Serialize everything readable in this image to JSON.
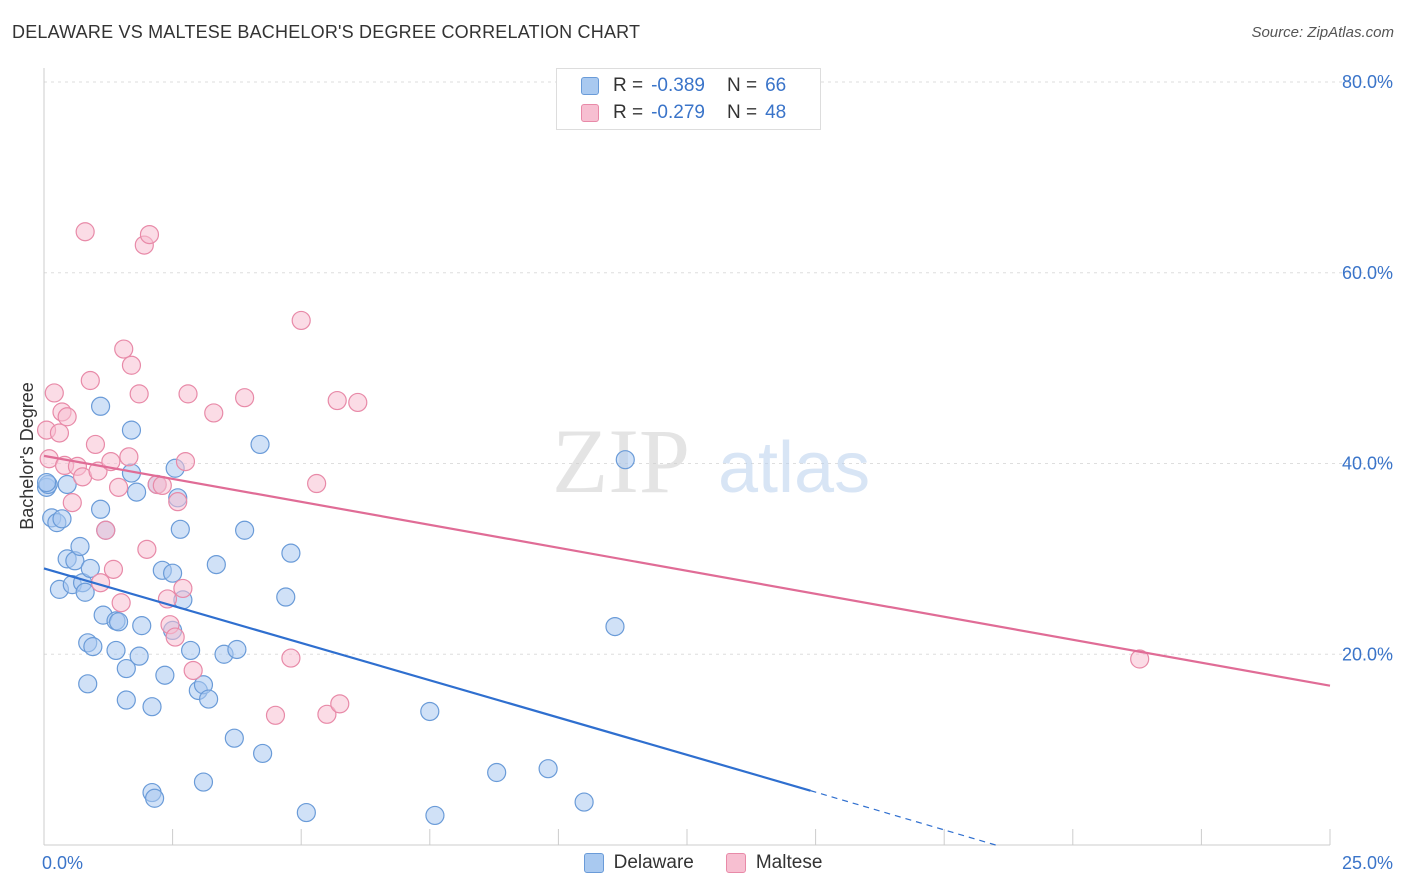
{
  "title": "DELAWARE VS MALTESE BACHELOR'S DEGREE CORRELATION CHART",
  "source": "Source: ZipAtlas.com",
  "watermark": {
    "zip": "ZIP",
    "atlas": "atlas"
  },
  "legend": {
    "r_label": "R =",
    "n_label": "N =",
    "rows": [
      {
        "name": "Delaware",
        "r": "-0.389",
        "n": "66"
      },
      {
        "name": "Maltese",
        "r": "-0.279",
        "n": "48"
      }
    ]
  },
  "colors": {
    "delaware_fill": "#a9c9f0",
    "delaware_stroke": "#6a9bd8",
    "delaware_line": "#2f6fcf",
    "maltese_fill": "#f7bfd1",
    "maltese_stroke": "#e88aa8",
    "maltese_line": "#e06c96",
    "axis_label": "#3a74c9"
  },
  "chart_data": {
    "type": "scatter",
    "title": "DELAWARE VS MALTESE BACHELOR'S DEGREE CORRELATION CHART",
    "xlabel": "",
    "ylabel": "Bachelor's Degree",
    "xlim": [
      0,
      25
    ],
    "ylim": [
      0,
      80
    ],
    "x_tick_labels": [
      "0.0%",
      "25.0%"
    ],
    "y_ticks": [
      20,
      40,
      60,
      80
    ],
    "y_tick_labels": [
      "20.0%",
      "40.0%",
      "60.0%",
      "80.0%"
    ],
    "grid": true,
    "legend_position": "bottom",
    "series": [
      {
        "name": "Delaware",
        "r": -0.389,
        "n": 66,
        "trend": {
          "x0": 0,
          "y0": 29.0,
          "x1": 14.9,
          "y1": 5.7,
          "dashed_to_x": 18.5,
          "dashed_to_y": 0
        },
        "points": [
          [
            0.05,
            37.5
          ],
          [
            0.08,
            37.8
          ],
          [
            0.15,
            34.3
          ],
          [
            0.25,
            33.8
          ],
          [
            0.35,
            34.2
          ],
          [
            0.45,
            37.8
          ],
          [
            0.3,
            26.8
          ],
          [
            0.45,
            30.0
          ],
          [
            0.6,
            29.8
          ],
          [
            0.7,
            31.3
          ],
          [
            0.55,
            27.3
          ],
          [
            0.75,
            27.5
          ],
          [
            0.8,
            26.5
          ],
          [
            0.9,
            29.0
          ],
          [
            1.1,
            46.0
          ],
          [
            1.1,
            35.2
          ],
          [
            1.2,
            33.0
          ],
          [
            1.15,
            24.1
          ],
          [
            1.4,
            23.5
          ],
          [
            1.45,
            23.4
          ],
          [
            0.85,
            21.2
          ],
          [
            0.95,
            20.8
          ],
          [
            1.4,
            20.4
          ],
          [
            1.6,
            18.5
          ],
          [
            0.85,
            16.9
          ],
          [
            1.6,
            15.2
          ],
          [
            1.7,
            39.0
          ],
          [
            1.7,
            43.5
          ],
          [
            1.8,
            37.0
          ],
          [
            1.85,
            19.8
          ],
          [
            1.9,
            23.0
          ],
          [
            2.1,
            14.5
          ],
          [
            2.2,
            37.8
          ],
          [
            2.3,
            28.8
          ],
          [
            2.35,
            17.8
          ],
          [
            2.5,
            22.5
          ],
          [
            2.5,
            28.5
          ],
          [
            2.55,
            39.5
          ],
          [
            2.6,
            36.4
          ],
          [
            2.65,
            33.1
          ],
          [
            2.7,
            25.7
          ],
          [
            2.85,
            20.4
          ],
          [
            3.0,
            16.2
          ],
          [
            3.1,
            16.8
          ],
          [
            3.2,
            15.3
          ],
          [
            3.35,
            29.4
          ],
          [
            3.5,
            20.0
          ],
          [
            3.75,
            20.5
          ],
          [
            3.7,
            11.2
          ],
          [
            3.9,
            33.0
          ],
          [
            4.2,
            42.0
          ],
          [
            4.25,
            9.6
          ],
          [
            4.7,
            26.0
          ],
          [
            4.8,
            30.6
          ],
          [
            2.1,
            5.5
          ],
          [
            2.15,
            4.9
          ],
          [
            3.1,
            6.6
          ],
          [
            5.1,
            3.4
          ],
          [
            7.5,
            14.0
          ],
          [
            7.6,
            3.1
          ],
          [
            8.8,
            7.6
          ],
          [
            9.8,
            8.0
          ],
          [
            10.5,
            4.5
          ],
          [
            11.1,
            22.9
          ],
          [
            11.3,
            40.4
          ],
          [
            0.05,
            38.0
          ]
        ]
      },
      {
        "name": "Maltese",
        "r": -0.279,
        "n": 48,
        "trend": {
          "x0": 0,
          "y0": 40.8,
          "x1": 25,
          "y1": 16.7
        },
        "points": [
          [
            0.05,
            43.5
          ],
          [
            0.1,
            40.5
          ],
          [
            0.2,
            47.4
          ],
          [
            0.3,
            43.2
          ],
          [
            0.35,
            45.4
          ],
          [
            0.45,
            44.9
          ],
          [
            0.4,
            39.8
          ],
          [
            0.55,
            35.9
          ],
          [
            0.65,
            39.7
          ],
          [
            0.75,
            38.6
          ],
          [
            0.8,
            64.3
          ],
          [
            0.9,
            48.7
          ],
          [
            1.0,
            42.0
          ],
          [
            1.05,
            39.2
          ],
          [
            1.1,
            27.5
          ],
          [
            1.2,
            33.0
          ],
          [
            1.3,
            40.2
          ],
          [
            1.35,
            28.9
          ],
          [
            1.45,
            37.5
          ],
          [
            1.5,
            25.4
          ],
          [
            1.55,
            52.0
          ],
          [
            1.65,
            40.7
          ],
          [
            1.7,
            50.3
          ],
          [
            1.85,
            47.3
          ],
          [
            1.95,
            62.9
          ],
          [
            2.0,
            31.0
          ],
          [
            2.05,
            64.0
          ],
          [
            2.2,
            37.8
          ],
          [
            2.3,
            37.7
          ],
          [
            2.4,
            25.8
          ],
          [
            2.45,
            23.1
          ],
          [
            2.55,
            21.8
          ],
          [
            2.6,
            36.0
          ],
          [
            2.7,
            26.9
          ],
          [
            2.75,
            40.2
          ],
          [
            2.8,
            47.3
          ],
          [
            2.9,
            18.3
          ],
          [
            3.3,
            45.3
          ],
          [
            3.9,
            46.9
          ],
          [
            4.5,
            13.6
          ],
          [
            4.8,
            19.6
          ],
          [
            5.0,
            55.0
          ],
          [
            5.3,
            37.9
          ],
          [
            5.5,
            13.7
          ],
          [
            5.7,
            46.6
          ],
          [
            5.75,
            14.8
          ],
          [
            6.1,
            46.4
          ],
          [
            21.3,
            19.5
          ]
        ]
      }
    ]
  }
}
